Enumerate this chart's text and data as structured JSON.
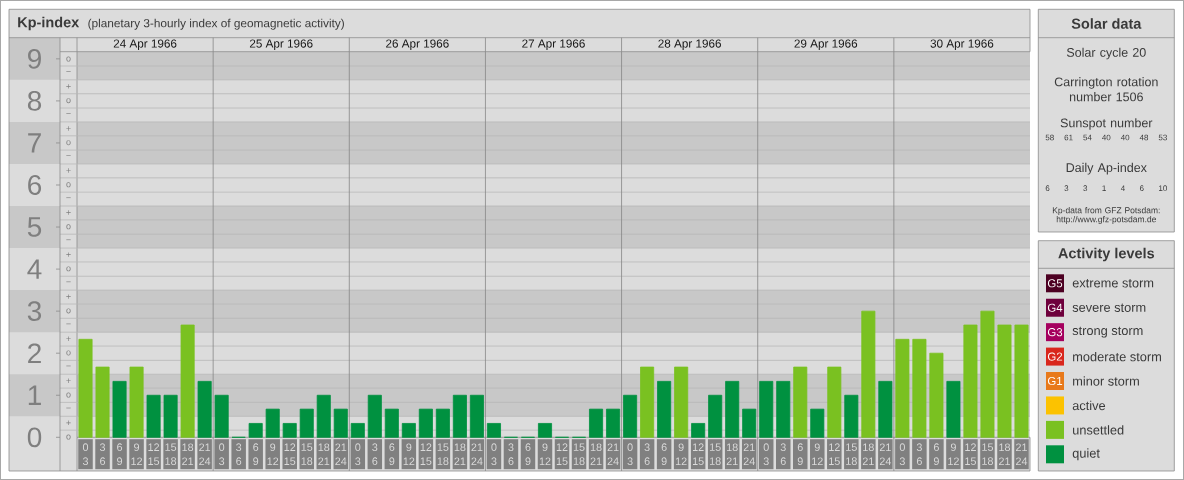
{
  "chart_data": [
    {
      "type": "bar",
      "title": "Kp-index",
      "subtitle": "(planetary 3-hourly index of geomagnetic activity)",
      "categories": [
        "0 3",
        "3 6",
        "6 9",
        "9 12",
        "12 15",
        "15 18",
        "18 21",
        "21 24",
        "0 3",
        "3 6",
        "6 9",
        "9 12",
        "12 15",
        "15 18",
        "18 21",
        "21 24",
        "0 3",
        "3 6",
        "6 9",
        "9 12",
        "12 15",
        "15 18",
        "18 21",
        "21 24",
        "0 3",
        "3 6",
        "6 9",
        "9 12",
        "12 15",
        "15 18",
        "18 21",
        "21 24",
        "0 3",
        "3 6",
        "6 9",
        "9 12",
        "12 15",
        "15 18",
        "18 21",
        "21 24",
        "0 3",
        "3 6",
        "6 9",
        "9 12",
        "12 15",
        "15 18",
        "18 21",
        "21 24",
        "0 3",
        "3 6",
        "6 9",
        "9 12",
        "12 15",
        "15 18",
        "18 21",
        "21 24"
      ],
      "series": [
        {
          "name": "extreme storm",
          "color": "#4c0022",
          "values": [
            null,
            null,
            null,
            null,
            null,
            null,
            null,
            null,
            null,
            null,
            null,
            null,
            null,
            null,
            null,
            null,
            null,
            null,
            null,
            null,
            null,
            null,
            null,
            null,
            null,
            null,
            null,
            null,
            null,
            null,
            null,
            null,
            null,
            null,
            null,
            null,
            null,
            null,
            null,
            null,
            null,
            null,
            null,
            null,
            null,
            null,
            null,
            null,
            null,
            null,
            null,
            null,
            null,
            null,
            null,
            null
          ]
        },
        {
          "name": "severe storm",
          "color": "#6e003c",
          "values": [
            null,
            null,
            null,
            null,
            null,
            null,
            null,
            null,
            null,
            null,
            null,
            null,
            null,
            null,
            null,
            null,
            null,
            null,
            null,
            null,
            null,
            null,
            null,
            null,
            null,
            null,
            null,
            null,
            null,
            null,
            null,
            null,
            null,
            null,
            null,
            null,
            null,
            null,
            null,
            null,
            null,
            null,
            null,
            null,
            null,
            null,
            null,
            null,
            null,
            null,
            null,
            null,
            null,
            null,
            null,
            null
          ]
        },
        {
          "name": "strong storm",
          "color": "#a5005e",
          "values": [
            null,
            null,
            null,
            null,
            null,
            null,
            null,
            null,
            null,
            null,
            null,
            null,
            null,
            null,
            null,
            null,
            null,
            null,
            null,
            null,
            null,
            null,
            null,
            null,
            null,
            null,
            null,
            null,
            null,
            null,
            null,
            null,
            null,
            null,
            null,
            null,
            null,
            null,
            null,
            null,
            null,
            null,
            null,
            null,
            null,
            null,
            null,
            null,
            null,
            null,
            null,
            null,
            null,
            null,
            null,
            null
          ]
        },
        {
          "name": "moderate storm",
          "color": "#d9261c",
          "values": [
            null,
            null,
            null,
            null,
            null,
            null,
            null,
            null,
            null,
            null,
            null,
            null,
            null,
            null,
            null,
            null,
            null,
            null,
            null,
            null,
            null,
            null,
            null,
            null,
            null,
            null,
            null,
            null,
            null,
            null,
            null,
            null,
            null,
            null,
            null,
            null,
            null,
            null,
            null,
            null,
            null,
            null,
            null,
            null,
            null,
            null,
            null,
            null,
            null,
            null,
            null,
            null,
            null,
            null,
            null,
            null
          ]
        },
        {
          "name": "minor storm",
          "color": "#e8791a",
          "values": [
            null,
            null,
            null,
            null,
            null,
            null,
            null,
            null,
            null,
            null,
            null,
            null,
            null,
            null,
            null,
            null,
            null,
            null,
            null,
            null,
            null,
            null,
            null,
            null,
            null,
            null,
            null,
            null,
            null,
            null,
            null,
            null,
            null,
            null,
            null,
            null,
            null,
            null,
            null,
            null,
            null,
            null,
            null,
            null,
            null,
            null,
            null,
            null,
            null,
            null,
            null,
            null,
            null,
            null,
            null,
            null
          ]
        },
        {
          "name": "active",
          "color": "#fcc200",
          "values": [
            null,
            null,
            null,
            null,
            null,
            null,
            null,
            null,
            null,
            null,
            null,
            null,
            null,
            null,
            null,
            null,
            null,
            null,
            null,
            null,
            null,
            null,
            null,
            null,
            null,
            null,
            null,
            null,
            null,
            null,
            null,
            null,
            null,
            null,
            null,
            null,
            null,
            null,
            null,
            null,
            null,
            null,
            null,
            null,
            null,
            null,
            null,
            null,
            null,
            null,
            null,
            null,
            null,
            null,
            null,
            null
          ]
        },
        {
          "name": "unsettled",
          "color": "#7ac121",
          "values": [
            2.33,
            1.67,
            null,
            1.67,
            null,
            null,
            2.67,
            null,
            null,
            null,
            null,
            null,
            null,
            null,
            null,
            null,
            null,
            null,
            null,
            null,
            null,
            null,
            null,
            null,
            null,
            null,
            null,
            null,
            null,
            null,
            null,
            null,
            null,
            1.67,
            null,
            1.67,
            null,
            null,
            null,
            null,
            null,
            null,
            1.67,
            null,
            1.67,
            null,
            3,
            null,
            2.33,
            2.33,
            2,
            null,
            2.67,
            3,
            2.67,
            2.67
          ]
        },
        {
          "name": "quiet",
          "color": "#009140",
          "values": [
            null,
            null,
            1.33,
            null,
            1,
            1,
            null,
            1.33,
            1,
            0,
            0.33,
            0.67,
            0.33,
            0.67,
            1,
            0.67,
            0.33,
            1,
            0.67,
            0.33,
            0.67,
            0.67,
            1,
            1,
            0.33,
            0,
            0,
            0.33,
            0,
            0,
            0.67,
            0.67,
            1,
            null,
            1.33,
            null,
            0.33,
            1,
            1.33,
            0.67,
            1.33,
            1.33,
            null,
            0.67,
            null,
            1,
            null,
            1.33,
            null,
            null,
            null,
            1.33,
            null,
            null,
            null,
            null
          ]
        }
      ],
      "ylim": [
        0,
        9.17
      ],
      "yticks": [
        0,
        {
          "value": 0.17,
          "label": null
        },
        {
          "value": 0.5,
          "label": null
        },
        {
          "value": 0.83,
          "label": null
        },
        1,
        {
          "value": 1.17,
          "label": null
        },
        {
          "value": 1.5,
          "label": null
        },
        {
          "value": 1.83,
          "label": null
        },
        2,
        {
          "value": 2.17,
          "label": null
        },
        {
          "value": 2.5,
          "label": null
        },
        {
          "value": 2.83,
          "label": null
        },
        3,
        {
          "value": 3.17,
          "label": null
        },
        {
          "value": 3.5,
          "label": null
        },
        {
          "value": 3.83,
          "label": null
        },
        4,
        {
          "value": 4.17,
          "label": null
        },
        {
          "value": 4.5,
          "label": null
        },
        {
          "value": 4.83,
          "label": null
        },
        5,
        {
          "value": 5.17,
          "label": null
        },
        {
          "value": 5.5,
          "label": null
        },
        {
          "value": 5.83,
          "label": null
        },
        6,
        {
          "value": 6.17,
          "label": null
        },
        {
          "value": 6.5,
          "label": null
        },
        {
          "value": 6.83,
          "label": null
        },
        7,
        {
          "value": 7.17,
          "label": null
        },
        {
          "value": 7.5,
          "label": null
        },
        {
          "value": 7.83,
          "label": null
        },
        8,
        {
          "value": 8.17,
          "label": null
        },
        {
          "value": 8.5,
          "label": null
        },
        {
          "value": 8.83,
          "label": null
        },
        9
      ],
      "x2lim": [
        "1966-04-24T00:00",
        "1966-05-01T00:00"
      ],
      "x2ticks": [
        {
          "value": "1966-04-24T12:00",
          "label": "24 Apr 1966"
        },
        {
          "value": "1966-04-25T00:00",
          "label": null
        },
        {
          "value": "1966-04-25T12:00",
          "label": "25 Apr 1966"
        },
        {
          "value": "1966-04-26T00:00",
          "label": null
        },
        {
          "value": "1966-04-26T12:00",
          "label": "26 Apr 1966"
        },
        {
          "value": "1966-04-27T00:00",
          "label": null
        },
        {
          "value": "1966-04-27T12:00",
          "label": "27 Apr 1966"
        },
        {
          "value": "1966-04-28T00:00",
          "label": null
        },
        {
          "value": "1966-04-28T12:00",
          "label": "28 Apr 1966"
        },
        {
          "value": "1966-04-29T00:00",
          "label": null
        },
        {
          "value": "1966-04-29T12:00",
          "label": "29 Apr 1966"
        },
        {
          "value": "1966-04-30T00:00",
          "label": null
        },
        {
          "value": "1966-04-30T12:00",
          "label": "30 Apr 1966"
        }
      ],
      "bands": [
        {
          "axis": "y",
          "from": 0.5,
          "to": 1.5,
          "color": "#c8c8c8"
        },
        {
          "axis": "y",
          "from": 2.5,
          "to": 3.5,
          "color": "#c8c8c8"
        },
        {
          "axis": "y",
          "from": 4.5,
          "to": 5.5,
          "color": "#c8c8c8"
        },
        {
          "axis": "y",
          "from": 6.5,
          "to": 7.5,
          "color": "#c8c8c8"
        },
        {
          "axis": "y",
          "from": 8.5,
          "to": 9.17,
          "color": "#c8c8c8"
        }
      ],
      "grid": true,
      "legend": "right",
      "legend_title": "Activity levels",
      "annotations": [
        "o",
        "+",
        "−",
        "o",
        "+",
        "−",
        "o",
        "+",
        "−",
        "o",
        "+",
        "−",
        "o",
        "+",
        "−",
        "o",
        "+",
        "−",
        "o",
        "+",
        "−",
        "o",
        "+",
        "−",
        "o",
        "+",
        "−",
        "o",
        "G5",
        "G4",
        "G3",
        "G2",
        "G1"
      ]
    },
    {
      "type": "other",
      "title": "Solar data",
      "annotations": [
        "Solar cycle 20",
        "Carrington rotation number 1506",
        "Sunspot number",
        "58 61 54 40 40 48 53",
        "Daily Ap-index",
        "6 3 3 1 4 6 10",
        "Kp-data from GFZ Potsdam: http://www.gfz-potsdam.de"
      ]
    }
  ]
}
